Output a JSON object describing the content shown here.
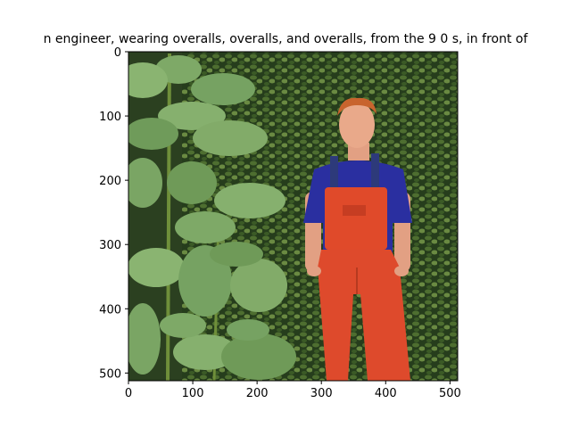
{
  "figure": {
    "title": "n engineer,  wearing overalls, overalls, and overalls, from the 9 0 s, in front of"
  },
  "chart_data": {
    "type": "image",
    "xlim": [
      0,
      512
    ],
    "ylim": [
      512,
      0
    ],
    "x_ticks": [
      0,
      100,
      200,
      300,
      400,
      500
    ],
    "y_ticks": [
      0,
      100,
      200,
      300,
      400,
      500
    ],
    "x_tick_labels": [
      "0",
      "100",
      "200",
      "300",
      "400",
      "500"
    ],
    "y_tick_labels": [
      "0",
      "100",
      "200",
      "300",
      "400",
      "500"
    ]
  },
  "image": {
    "description_colors": {
      "hedge": "#2f4a22",
      "hedge_light": "#5c7a3a",
      "leaf": "#6f9a58",
      "leaf_dark": "#3f6a34",
      "shirt": "#2a2fa0",
      "overalls": "#e04a2a",
      "skin": "#e9a98a",
      "hair": "#c8642e"
    }
  }
}
